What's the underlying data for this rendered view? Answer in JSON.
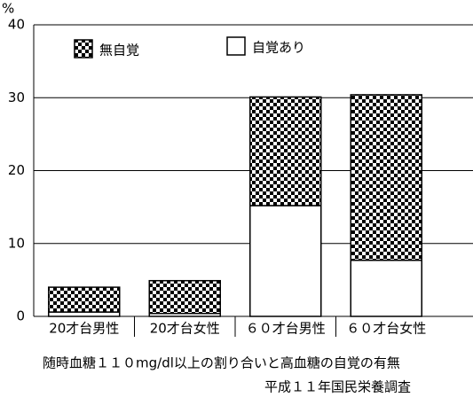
{
  "chart_data": {
    "type": "stacked-bar",
    "y_unit_label": "%",
    "categories": [
      "20才台男性",
      "20才台女性",
      "６０才台男性",
      "６０才台女性"
    ],
    "series": [
      {
        "name": "自覚あり",
        "color": "#ffffff",
        "values": [
          0.6,
          0.4,
          15.2,
          7.7
        ]
      },
      {
        "name": "無自覚",
        "color": "#000000",
        "pattern": "checker",
        "values": [
          3.4,
          4.5,
          14.9,
          22.7
        ]
      }
    ],
    "ylim": [
      0,
      40
    ],
    "yticks": [
      0,
      10,
      20,
      30,
      40
    ],
    "grid": true,
    "caption": [
      "随時血糖１１０mg/dl以上の割り合いと高血糖の自覚の有無",
      "平成１１年国民栄養調査"
    ]
  }
}
